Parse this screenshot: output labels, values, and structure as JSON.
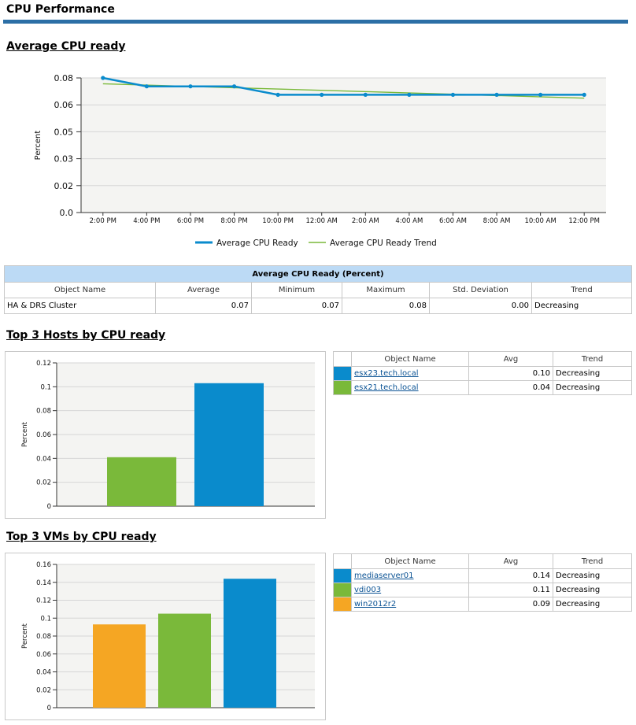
{
  "page": {
    "title": "CPU Performance",
    "accent": "#2c6fa6"
  },
  "sections": {
    "avg_title": "Average CPU ready",
    "hosts_title": "Top 3 Hosts by CPU ready",
    "vms_title": "Top 3 VMs by CPU ready"
  },
  "summary_table": {
    "caption": "Average CPU Ready (Percent)",
    "headers": [
      "Object Name",
      "Average",
      "Minimum",
      "Maximum",
      "Std. Deviation",
      "Trend"
    ],
    "rows": [
      [
        "HA & DRS Cluster",
        "0.07",
        "0.07",
        "0.08",
        "0.00",
        "Decreasing"
      ]
    ]
  },
  "hosts_table": {
    "headers": [
      "Object Name",
      "Avg",
      "Trend"
    ],
    "rows": [
      {
        "name": "esx23.tech.local",
        "avg": "0.10",
        "trend": "Decreasing",
        "color": "#0a8bcc"
      },
      {
        "name": "esx21.tech.local",
        "avg": "0.04",
        "trend": "Decreasing",
        "color": "#7ab93a"
      }
    ]
  },
  "vms_table": {
    "headers": [
      "Object Name",
      "Avg",
      "Trend"
    ],
    "rows": [
      {
        "name": "mediaserver01",
        "avg": "0.14",
        "trend": "Decreasing",
        "color": "#0a8bcc"
      },
      {
        "name": "vdi003",
        "avg": "0.11",
        "trend": "Decreasing",
        "color": "#7ab93a"
      },
      {
        "name": "win2012r2",
        "avg": "0.09",
        "trend": "Decreasing",
        "color": "#f5a623"
      }
    ]
  },
  "chart_data": [
    {
      "type": "line",
      "ylabel": "Percent",
      "ylim": [
        0,
        0.08
      ],
      "yticks": [
        "0.0",
        "0.02",
        "0.03",
        "0.05",
        "0.06",
        "0.08"
      ],
      "ytick_values": [
        0,
        0.016,
        0.032,
        0.048,
        0.064,
        0.08
      ],
      "xtick_labels": [
        "2:00 PM",
        "4:00 PM",
        "6:00 PM",
        "8:00 PM",
        "10:00 PM",
        "12:00 AM",
        "2:00 AM",
        "4:00 AM",
        "6:00 AM",
        "8:00 AM",
        "10:00 AM",
        "12:00 PM"
      ],
      "x_hours": [
        13,
        15,
        17,
        19,
        21,
        23,
        25,
        27,
        29,
        31,
        33,
        35
      ],
      "grid": true,
      "legend_position": "bottom",
      "series": [
        {
          "name": "Average CPU Ready",
          "color": "#0a8bcc",
          "x_hours": [
            13,
            15,
            17,
            19,
            21,
            23,
            25,
            27,
            29,
            31,
            33,
            35
          ],
          "values": [
            0.08,
            0.075,
            0.075,
            0.075,
            0.07,
            0.07,
            0.07,
            0.07,
            0.07,
            0.07,
            0.07,
            0.07
          ]
        },
        {
          "name": "Average CPU Ready Trend",
          "color": "#7ab93a",
          "x_hours": [
            13,
            35
          ],
          "values": [
            0.0765,
            0.068
          ]
        }
      ]
    },
    {
      "type": "bar",
      "ylabel": "Percent",
      "ylim": [
        0,
        0.12
      ],
      "yticks": [
        "0",
        "0.02",
        "0.04",
        "0.06",
        "0.08",
        "0.1",
        "0.12"
      ],
      "ytick_values": [
        0,
        0.02,
        0.04,
        0.06,
        0.08,
        0.1,
        0.12
      ],
      "categories": [
        "esx21.tech.local",
        "esx23.tech.local"
      ],
      "values": [
        0.041,
        0.103
      ],
      "colors": [
        "#7ab93a",
        "#0a8bcc"
      ],
      "grid": true
    },
    {
      "type": "bar",
      "ylabel": "Percent",
      "ylim": [
        0,
        0.16
      ],
      "yticks": [
        "0",
        "0.02",
        "0.04",
        "0.06",
        "0.08",
        "0.1",
        "0.12",
        "0.14",
        "0.16"
      ],
      "ytick_values": [
        0,
        0.02,
        0.04,
        0.06,
        0.08,
        0.1,
        0.12,
        0.14,
        0.16
      ],
      "categories": [
        "win2012r2",
        "vdi003",
        "mediaserver01"
      ],
      "values": [
        0.093,
        0.105,
        0.144
      ],
      "colors": [
        "#f5a623",
        "#7ab93a",
        "#0a8bcc"
      ],
      "grid": true
    }
  ]
}
